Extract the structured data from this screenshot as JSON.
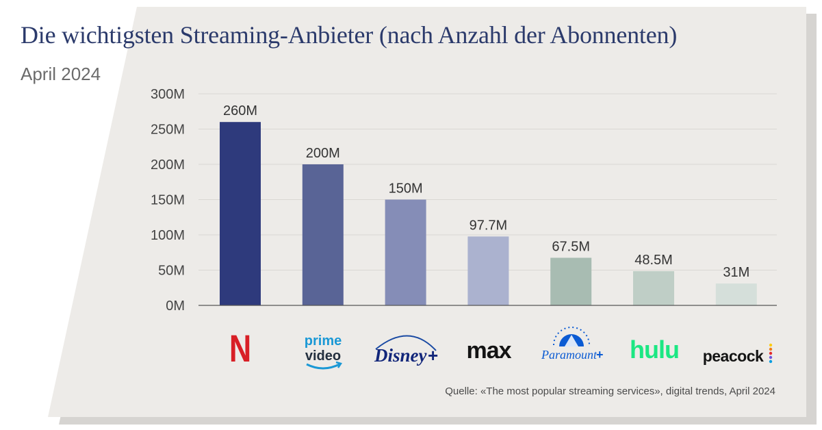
{
  "header": {
    "title": "Die wichtigsten Streaming-Anbieter (nach Anzahl der Abonnenten)",
    "subtitle": "April 2024"
  },
  "footer": {
    "source": "Quelle: «The most popular streaming services», digital trends, April 2024"
  },
  "colors": {
    "panel": "#edebe8",
    "shadow": "#d6d4d1",
    "gridline": "#d9d7d3",
    "axis": "#555555",
    "title": "#2b3a6b"
  },
  "chart_data": {
    "type": "bar",
    "categories": [
      "Netflix",
      "Prime Video",
      "Disney+",
      "Max",
      "Paramount+",
      "Hulu",
      "Peacock"
    ],
    "values": [
      260,
      200,
      150,
      97.7,
      67.5,
      48.5,
      31
    ],
    "value_labels": [
      "260M",
      "200M",
      "150M",
      "97.7M",
      "67.5M",
      "48.5M",
      "31M"
    ],
    "bar_colors": [
      "#2e3a7c",
      "#596496",
      "#858db7",
      "#abb2cf",
      "#a8bcb2",
      "#bfcec6",
      "#d5dfda"
    ],
    "ylim": [
      0,
      300
    ],
    "yticks": [
      0,
      50,
      100,
      150,
      200,
      250,
      300
    ],
    "ytick_labels": [
      "0M",
      "50M",
      "100M",
      "150M",
      "200M",
      "250M",
      "300M"
    ],
    "grid": true,
    "logos": {
      "netflix": "N",
      "prime_top": "prime",
      "prime_bottom": "video",
      "disney": "Disney",
      "disney_plus": "+",
      "max": "max",
      "paramount": "Paramount",
      "paramount_plus": "+",
      "hulu": "hulu",
      "peacock": "peacock"
    }
  }
}
